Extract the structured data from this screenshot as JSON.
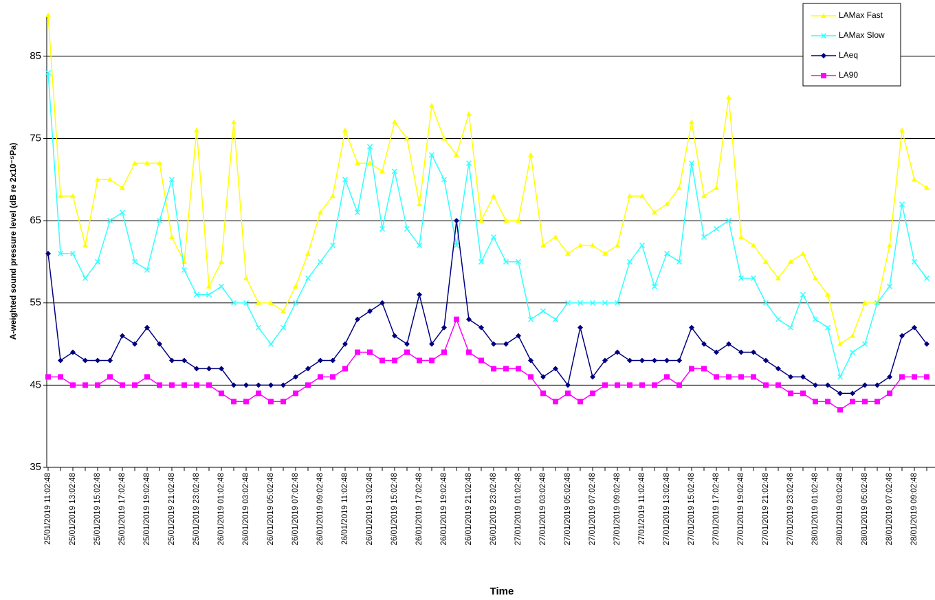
{
  "chart_data": {
    "type": "line",
    "x_label": "Time",
    "y_label": "A-weighted sound pressure level (dB re 2x10⁻⁵Pa)",
    "categories": [
      "25/01/2019 11:02:48",
      null,
      "25/01/2019 13:02:48",
      null,
      "25/01/2019 15:02:48",
      null,
      "25/01/2019 17:02:48",
      null,
      "25/01/2019 19:02:48",
      null,
      "25/01/2019 21:02:48",
      null,
      "25/01/2019 23:02:48",
      null,
      "26/01/2019 01:02:48",
      null,
      "26/01/2019 03:02:48",
      null,
      "26/01/2019 05:02:48",
      null,
      "26/01/2019 07:02:48",
      null,
      "26/01/2019 09:02:48",
      null,
      "26/01/2019 11:02:48",
      null,
      "26/01/2019 13:02:48",
      null,
      "26/01/2019 15:02:48",
      null,
      "26/01/2019 17:02:48",
      null,
      "26/01/2019 19:02:48",
      null,
      "26/01/2019 21:02:48",
      null,
      "26/01/2019 23:02:48",
      null,
      "27/01/2019 01:02:48",
      null,
      "27/01/2019 03:02:48",
      null,
      "27/01/2019 05:02:48",
      null,
      "27/01/2019 07:02:48",
      null,
      "27/01/2019 09:02:48",
      null,
      "27/01/2019 11:02:48",
      null,
      "27/01/2019 13:02:48",
      null,
      "27/01/2019 15:02:48",
      null,
      "27/01/2019 17:02:48",
      null,
      "27/01/2019 19:02:48",
      null,
      "27/01/2019 21:02:48",
      null,
      "27/01/2019 23:02:48",
      null,
      "28/01/2019 01:02:48",
      null,
      "28/01/2019 03:02:48",
      null,
      "28/01/2019 05:02:48",
      null,
      "28/01/2019 07:02:48",
      null,
      "28/01/2019 09:02:48",
      null
    ],
    "series": [
      {
        "name": "LAMax Fast",
        "color": "#ffff00",
        "marker": "triangle",
        "values": [
          90,
          68,
          68,
          62,
          70,
          70,
          69,
          72,
          72,
          72,
          63,
          60,
          76,
          57,
          60,
          77,
          58,
          55,
          55,
          54,
          57,
          61,
          66,
          68,
          76,
          72,
          72,
          71,
          77,
          75,
          67,
          79,
          75,
          73,
          78,
          65,
          68,
          65,
          65,
          73,
          62,
          63,
          61,
          62,
          62,
          61,
          62,
          68,
          68,
          66,
          67,
          69,
          77,
          68,
          69,
          80,
          63,
          62,
          60,
          58,
          60,
          61,
          58,
          56,
          50,
          51,
          55,
          55,
          62,
          76,
          70,
          69
        ]
      },
      {
        "name": "LAMax Slow",
        "color": "#33ffff",
        "marker": "cross",
        "values": [
          83,
          61,
          61,
          58,
          60,
          65,
          66,
          60,
          59,
          65,
          70,
          59,
          56,
          56,
          57,
          55,
          55,
          52,
          50,
          52,
          55,
          58,
          60,
          62,
          70,
          66,
          74,
          64,
          71,
          64,
          62,
          73,
          70,
          62,
          72,
          60,
          63,
          60,
          60,
          53,
          54,
          53,
          55,
          55,
          55,
          55,
          55,
          60,
          62,
          57,
          61,
          60,
          72,
          63,
          64,
          65,
          58,
          58,
          55,
          53,
          52,
          56,
          53,
          52,
          46,
          49,
          50,
          55,
          57,
          67,
          60,
          58
        ]
      },
      {
        "name": "LAeq",
        "color": "#000080",
        "marker": "diamond",
        "values": [
          61,
          48,
          49,
          48,
          48,
          48,
          51,
          50,
          52,
          50,
          48,
          48,
          47,
          47,
          47,
          45,
          45,
          45,
          45,
          45,
          46,
          47,
          48,
          48,
          50,
          53,
          54,
          55,
          51,
          50,
          56,
          50,
          52,
          65,
          53,
          52,
          50,
          50,
          51,
          48,
          46,
          47,
          45,
          52,
          46,
          48,
          49,
          48,
          48,
          48,
          48,
          48,
          52,
          50,
          49,
          50,
          49,
          49,
          48,
          47,
          46,
          46,
          45,
          45,
          44,
          44,
          45,
          45,
          46,
          51,
          52,
          50
        ]
      },
      {
        "name": "LA90",
        "color": "#ff00ff",
        "marker": "square",
        "values": [
          46,
          46,
          45,
          45,
          45,
          46,
          45,
          45,
          46,
          45,
          45,
          45,
          45,
          45,
          44,
          43,
          43,
          44,
          43,
          43,
          44,
          45,
          46,
          46,
          47,
          49,
          49,
          48,
          48,
          49,
          48,
          48,
          49,
          53,
          49,
          48,
          47,
          47,
          47,
          46,
          44,
          43,
          44,
          43,
          44,
          45,
          45,
          45,
          45,
          45,
          46,
          45,
          47,
          47,
          46,
          46,
          46,
          46,
          45,
          45,
          44,
          44,
          43,
          43,
          42,
          43,
          43,
          43,
          44,
          46,
          46,
          46
        ]
      }
    ],
    "ylim": [
      35,
      90
    ],
    "yticks": [
      35,
      45,
      55,
      65,
      75,
      85
    ],
    "grid": true,
    "legend": "top-right"
  }
}
